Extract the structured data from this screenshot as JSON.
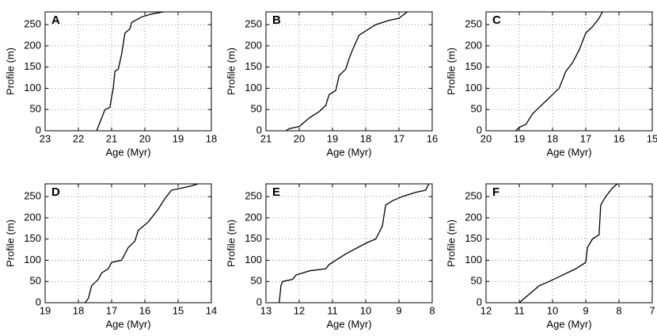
{
  "chart_data": [
    {
      "type": "line",
      "title": "A",
      "xlabel": "Age (Myr)",
      "ylabel": "Profile (m)",
      "color": "#000000",
      "grid": true,
      "xlim": [
        23,
        18
      ],
      "xticks": [
        23,
        22,
        21,
        20,
        19,
        18
      ],
      "ylim": [
        0,
        280
      ],
      "yticks": [
        0,
        50,
        100,
        150,
        200,
        250
      ],
      "x": [
        21.45,
        21.4,
        21.3,
        21.2,
        21.05,
        21.0,
        20.95,
        20.9,
        20.8,
        20.7,
        20.6,
        20.45,
        20.4,
        20.1,
        19.8,
        19.45
      ],
      "values": [
        0,
        10,
        30,
        50,
        55,
        80,
        100,
        140,
        145,
        180,
        230,
        240,
        255,
        268,
        275,
        280
      ]
    },
    {
      "type": "line",
      "title": "B",
      "xlabel": "Age (Myr)",
      "ylabel": "Profile (m)",
      "color": "#000000",
      "grid": true,
      "xlim": [
        21,
        16
      ],
      "xticks": [
        21,
        20,
        19,
        18,
        17,
        16
      ],
      "ylim": [
        0,
        280
      ],
      "yticks": [
        0,
        50,
        100,
        150,
        200,
        250
      ],
      "x": [
        20.4,
        20.3,
        20.0,
        19.7,
        19.4,
        19.2,
        19.1,
        18.9,
        18.8,
        18.6,
        18.5,
        18.4,
        18.2,
        18.0,
        17.7,
        17.3,
        17.0,
        16.75
      ],
      "values": [
        0,
        5,
        10,
        30,
        45,
        60,
        85,
        95,
        130,
        145,
        170,
        190,
        225,
        235,
        250,
        260,
        265,
        280
      ]
    },
    {
      "type": "line",
      "title": "C",
      "xlabel": "Age (Myr)",
      "ylabel": "Profile (m)",
      "color": "#000000",
      "grid": true,
      "xlim": [
        20,
        15
      ],
      "xticks": [
        20,
        19,
        18,
        17,
        16,
        15
      ],
      "ylim": [
        0,
        280
      ],
      "yticks": [
        0,
        50,
        100,
        150,
        200,
        250
      ],
      "x": [
        19.1,
        19.0,
        18.8,
        18.6,
        18.4,
        18.2,
        18.0,
        17.8,
        17.6,
        17.4,
        17.2,
        17.0,
        16.8,
        16.6,
        16.5
      ],
      "values": [
        0,
        8,
        15,
        40,
        55,
        70,
        85,
        100,
        140,
        160,
        190,
        230,
        245,
        265,
        280
      ]
    },
    {
      "type": "line",
      "title": "D",
      "xlabel": "Age (Myr)",
      "ylabel": "Profile (m)",
      "color": "#000000",
      "grid": true,
      "xlim": [
        19,
        14
      ],
      "xticks": [
        19,
        18,
        17,
        16,
        15,
        14
      ],
      "ylim": [
        0,
        280
      ],
      "yticks": [
        0,
        50,
        100,
        150,
        200,
        250
      ],
      "x": [
        17.8,
        17.7,
        17.6,
        17.4,
        17.3,
        17.1,
        17.0,
        16.7,
        16.5,
        16.3,
        16.2,
        15.9,
        15.6,
        15.4,
        15.2,
        14.9,
        14.6,
        14.4
      ],
      "values": [
        0,
        10,
        40,
        55,
        70,
        80,
        95,
        100,
        130,
        145,
        170,
        190,
        220,
        245,
        265,
        270,
        275,
        280
      ]
    },
    {
      "type": "line",
      "title": "E",
      "xlabel": "Age (Myr)",
      "ylabel": "Profile (m)",
      "color": "#000000",
      "grid": true,
      "xlim": [
        13,
        8
      ],
      "xticks": [
        13,
        12,
        11,
        10,
        9,
        8
      ],
      "ylim": [
        0,
        280
      ],
      "yticks": [
        0,
        50,
        100,
        150,
        200,
        250
      ],
      "x": [
        12.6,
        12.55,
        12.5,
        12.2,
        12.1,
        11.7,
        11.2,
        11.1,
        10.6,
        10.0,
        9.7,
        9.5,
        9.4,
        9.2,
        8.9,
        8.5,
        8.2,
        8.1
      ],
      "values": [
        0,
        40,
        50,
        55,
        65,
        75,
        80,
        90,
        115,
        140,
        150,
        180,
        230,
        240,
        250,
        260,
        265,
        280
      ]
    },
    {
      "type": "line",
      "title": "F",
      "xlabel": "Age (Myr)",
      "ylabel": "Profile (m)",
      "color": "#000000",
      "grid": true,
      "xlim": [
        12,
        7
      ],
      "xticks": [
        12,
        11,
        10,
        9,
        8,
        7
      ],
      "ylim": [
        0,
        280
      ],
      "yticks": [
        0,
        50,
        100,
        150,
        200,
        250
      ],
      "x": [
        11.0,
        10.7,
        10.4,
        10.1,
        9.7,
        9.3,
        9.0,
        8.95,
        8.8,
        8.6,
        8.55,
        8.4,
        8.2,
        8.05
      ],
      "values": [
        0,
        20,
        40,
        50,
        65,
        80,
        95,
        130,
        150,
        160,
        230,
        250,
        270,
        280
      ]
    }
  ]
}
